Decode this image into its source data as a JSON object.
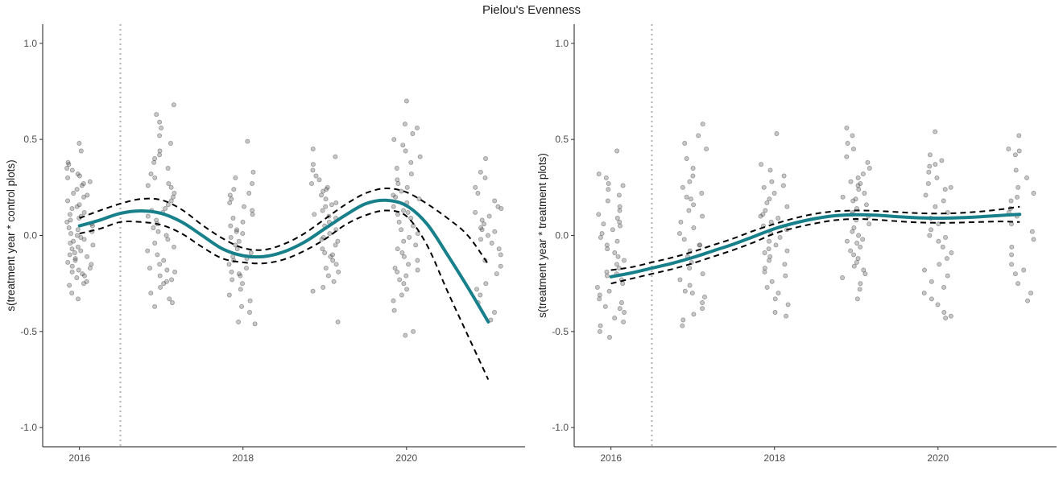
{
  "figure": {
    "title": "Pielou's Evenness",
    "colors": {
      "smooth": "#17808a",
      "ci": "#000000",
      "points": "#4d4d4d",
      "vline": "#b3b3b3"
    }
  },
  "chart_data": [
    {
      "type": "scatter",
      "panel": "left",
      "title": "",
      "xlabel": "",
      "ylabel": "s(treatment year * control plots)",
      "xlim": [
        2015.55,
        2021.45
      ],
      "ylim": [
        -1.1,
        1.1
      ],
      "x_ticks": [
        2016,
        2018,
        2020
      ],
      "x_tick_labels": [
        "2016",
        "2018",
        "2020"
      ],
      "y_ticks": [
        -1.0,
        -0.5,
        0.0,
        0.5,
        1.0
      ],
      "y_tick_labels": [
        "-1.0",
        "-0.5",
        "0.0",
        "0.5",
        "1.0"
      ],
      "vline_x": 2016.5,
      "grid": false,
      "point_groups": [
        {
          "x": 2016,
          "spread": 0.17,
          "values": [
            0.48,
            0.44,
            0.37,
            0.34,
            0.32,
            0.31,
            0.3,
            0.28,
            0.26,
            0.24,
            0.22,
            0.21,
            0.2,
            0.18,
            0.16,
            0.14,
            0.12,
            0.11,
            0.1,
            0.09,
            0.08,
            0.07,
            0.06,
            0.05,
            0.04,
            0.03,
            0.02,
            0.01,
            0.0,
            -0.01,
            -0.02,
            -0.03,
            -0.04,
            -0.05,
            -0.06,
            -0.07,
            -0.08,
            -0.09,
            -0.1,
            -0.11,
            -0.12,
            -0.13,
            -0.14,
            -0.15,
            -0.16,
            -0.17,
            -0.18,
            -0.19,
            -0.2,
            -0.22,
            -0.24,
            -0.25,
            -0.26,
            -0.3,
            -0.33,
            0.38,
            0.35,
            0.15,
            -0.21,
            0.27
          ]
        },
        {
          "x": 2017,
          "spread": 0.17,
          "values": [
            0.68,
            0.63,
            0.59,
            0.56,
            0.52,
            0.48,
            0.44,
            0.42,
            0.4,
            0.38,
            0.35,
            0.32,
            0.3,
            0.27,
            0.25,
            0.22,
            0.2,
            0.18,
            0.16,
            0.14,
            0.12,
            0.1,
            0.08,
            0.06,
            0.04,
            0.02,
            0.0,
            -0.02,
            -0.04,
            -0.06,
            -0.08,
            -0.1,
            -0.13,
            -0.15,
            -0.17,
            -0.19,
            -0.21,
            -0.23,
            -0.25,
            -0.27,
            -0.3,
            -0.33,
            -0.35,
            -0.37,
            0.26,
            0.13,
            -0.18,
            -0.24
          ]
        },
        {
          "x": 2018,
          "spread": 0.17,
          "values": [
            0.49,
            0.33,
            0.3,
            0.27,
            0.24,
            0.21,
            0.19,
            0.17,
            0.15,
            0.13,
            0.11,
            0.09,
            0.07,
            0.05,
            0.03,
            0.01,
            -0.01,
            -0.03,
            -0.05,
            -0.07,
            -0.09,
            -0.11,
            -0.13,
            -0.15,
            -0.17,
            -0.19,
            -0.21,
            -0.23,
            -0.25,
            -0.28,
            -0.31,
            -0.34,
            -0.37,
            -0.4,
            -0.45,
            -0.46,
            0.22,
            -0.12,
            0.02,
            -0.2
          ]
        },
        {
          "x": 2019,
          "spread": 0.17,
          "values": [
            0.45,
            0.41,
            0.37,
            0.34,
            0.31,
            0.29,
            0.27,
            0.25,
            0.23,
            0.21,
            0.19,
            0.17,
            0.15,
            0.13,
            0.11,
            0.09,
            0.07,
            0.05,
            0.03,
            0.01,
            -0.01,
            -0.03,
            -0.05,
            -0.07,
            -0.09,
            -0.11,
            -0.13,
            -0.15,
            -0.17,
            -0.19,
            -0.21,
            -0.24,
            -0.27,
            -0.29,
            -0.45,
            0.24,
            0.1,
            -0.02,
            0.16,
            -0.1
          ]
        },
        {
          "x": 2020,
          "spread": 0.17,
          "values": [
            0.7,
            0.58,
            0.56,
            0.53,
            0.5,
            0.47,
            0.44,
            0.41,
            0.38,
            0.35,
            0.32,
            0.29,
            0.27,
            0.25,
            0.23,
            0.21,
            0.19,
            0.17,
            0.15,
            0.13,
            0.11,
            0.09,
            0.07,
            0.05,
            0.03,
            0.01,
            -0.01,
            -0.03,
            -0.05,
            -0.07,
            -0.09,
            -0.11,
            -0.13,
            -0.15,
            -0.17,
            -0.19,
            -0.21,
            -0.23,
            -0.25,
            -0.28,
            -0.31,
            -0.34,
            -0.39,
            -0.5,
            -0.52,
            0.12,
            -0.18,
            0.2
          ]
        },
        {
          "x": 2021,
          "spread": 0.17,
          "values": [
            0.4,
            0.33,
            0.3,
            0.25,
            0.22,
            0.18,
            0.15,
            0.12,
            0.1,
            0.08,
            0.06,
            0.04,
            0.02,
            0.0,
            -0.02,
            -0.04,
            -0.07,
            -0.1,
            -0.13,
            -0.16,
            -0.2,
            -0.25,
            -0.28,
            -0.31,
            -0.35,
            -0.4,
            -0.44,
            0.14,
            0.03
          ]
        }
      ],
      "smooth": {
        "x": [
          2016.0,
          2016.25,
          2016.5,
          2016.75,
          2017.0,
          2017.25,
          2017.5,
          2017.75,
          2018.0,
          2018.25,
          2018.5,
          2018.75,
          2019.0,
          2019.25,
          2019.5,
          2019.75,
          2020.0,
          2020.25,
          2020.5,
          2020.75,
          2021.0
        ],
        "fit": [
          0.05,
          0.08,
          0.115,
          0.128,
          0.115,
          0.07,
          0.0,
          -0.07,
          -0.105,
          -0.11,
          -0.085,
          -0.035,
          0.035,
          0.105,
          0.165,
          0.183,
          0.155,
          0.06,
          -0.1,
          -0.27,
          -0.45
        ],
        "upper": [
          0.09,
          0.13,
          0.165,
          0.19,
          0.185,
          0.135,
          0.055,
          -0.015,
          -0.065,
          -0.075,
          -0.045,
          0.01,
          0.085,
          0.16,
          0.22,
          0.245,
          0.225,
          0.165,
          0.09,
          0.0,
          -0.15
        ],
        "lower": [
          0.01,
          0.035,
          0.07,
          0.07,
          0.055,
          0.01,
          -0.06,
          -0.12,
          -0.14,
          -0.145,
          -0.125,
          -0.08,
          -0.02,
          0.055,
          0.105,
          0.13,
          0.1,
          -0.05,
          -0.29,
          -0.52,
          -0.75
        ]
      }
    },
    {
      "type": "scatter",
      "panel": "right",
      "title": "",
      "xlabel": "",
      "ylabel": "s(treatment year * treatment plots)",
      "xlim": [
        2015.55,
        2021.45
      ],
      "ylim": [
        -1.1,
        1.1
      ],
      "x_ticks": [
        2016,
        2018,
        2020
      ],
      "x_tick_labels": [
        "2016",
        "2018",
        "2020"
      ],
      "y_ticks": [
        -1.0,
        -0.5,
        0.0,
        0.5,
        1.0
      ],
      "y_tick_labels": [
        "-1.0",
        "-0.5",
        "0.0",
        "0.5",
        "1.0"
      ],
      "vline_x": 2016.5,
      "grid": false,
      "point_groups": [
        {
          "x": 2016,
          "spread": 0.17,
          "values": [
            0.44,
            0.32,
            0.3,
            0.27,
            0.24,
            0.21,
            0.18,
            0.15,
            0.13,
            0.11,
            0.09,
            0.07,
            0.05,
            0.03,
            0.01,
            -0.01,
            -0.03,
            -0.05,
            -0.07,
            -0.09,
            -0.11,
            -0.13,
            -0.15,
            -0.17,
            -0.19,
            -0.21,
            -0.23,
            -0.25,
            -0.27,
            -0.29,
            -0.31,
            -0.33,
            -0.35,
            -0.37,
            -0.4,
            -0.43,
            -0.45,
            -0.47,
            -0.5,
            -0.53,
            0.26,
            -0.2,
            0.06,
            -0.38
          ]
        },
        {
          "x": 2017,
          "spread": 0.17,
          "values": [
            0.58,
            0.52,
            0.48,
            0.45,
            0.4,
            0.35,
            0.31,
            0.28,
            0.25,
            0.22,
            0.19,
            0.16,
            0.13,
            0.1,
            0.07,
            0.04,
            0.01,
            -0.02,
            -0.05,
            -0.08,
            -0.11,
            -0.14,
            -0.17,
            -0.2,
            -0.23,
            -0.26,
            -0.29,
            -0.32,
            -0.35,
            -0.38,
            -0.41,
            -0.44,
            -0.47,
            0.2,
            -0.05,
            -0.3
          ]
        },
        {
          "x": 2018,
          "spread": 0.17,
          "values": [
            0.53,
            0.37,
            0.34,
            0.31,
            0.28,
            0.25,
            0.22,
            0.19,
            0.17,
            0.15,
            0.13,
            0.11,
            0.09,
            0.07,
            0.05,
            0.03,
            0.01,
            -0.01,
            -0.03,
            -0.05,
            -0.07,
            -0.09,
            -0.11,
            -0.13,
            -0.15,
            -0.17,
            -0.19,
            -0.21,
            -0.24,
            -0.27,
            -0.3,
            -0.33,
            -0.36,
            -0.4,
            -0.42,
            0.26,
            -0.08,
            0.1
          ]
        },
        {
          "x": 2019,
          "spread": 0.17,
          "values": [
            0.56,
            0.52,
            0.48,
            0.45,
            0.41,
            0.38,
            0.35,
            0.32,
            0.3,
            0.28,
            0.26,
            0.24,
            0.22,
            0.2,
            0.18,
            0.16,
            0.14,
            0.12,
            0.1,
            0.08,
            0.06,
            0.04,
            0.02,
            0.0,
            -0.02,
            -0.04,
            -0.06,
            -0.08,
            -0.1,
            -0.12,
            -0.14,
            -0.16,
            -0.18,
            -0.2,
            -0.22,
            -0.25,
            -0.28,
            -0.33,
            0.27,
            0.11,
            0.19,
            -0.03
          ]
        },
        {
          "x": 2020,
          "spread": 0.17,
          "values": [
            0.54,
            0.42,
            0.39,
            0.36,
            0.33,
            0.3,
            0.27,
            0.24,
            0.21,
            0.18,
            0.15,
            0.12,
            0.09,
            0.06,
            0.03,
            0.0,
            -0.03,
            -0.06,
            -0.09,
            -0.12,
            -0.15,
            -0.18,
            -0.21,
            -0.24,
            -0.27,
            -0.3,
            -0.33,
            -0.36,
            -0.4,
            -0.42,
            -0.43,
            0.37,
            -0.01,
            0.25
          ]
        },
        {
          "x": 2021,
          "spread": 0.17,
          "values": [
            0.52,
            0.45,
            0.44,
            0.42,
            0.34,
            0.3,
            0.25,
            0.22,
            0.18,
            0.14,
            0.1,
            0.06,
            0.02,
            -0.02,
            -0.06,
            -0.1,
            -0.15,
            -0.18,
            -0.2,
            -0.25,
            -0.3,
            -0.34,
            0.12,
            0.2
          ]
        }
      ],
      "smooth": {
        "x": [
          2016.0,
          2016.25,
          2016.5,
          2016.75,
          2017.0,
          2017.25,
          2017.5,
          2017.75,
          2018.0,
          2018.25,
          2018.5,
          2018.75,
          2019.0,
          2019.25,
          2019.5,
          2019.75,
          2020.0,
          2020.25,
          2020.5,
          2020.75,
          2021.0
        ],
        "fit": [
          -0.215,
          -0.195,
          -0.17,
          -0.145,
          -0.115,
          -0.08,
          -0.045,
          -0.005,
          0.035,
          0.065,
          0.088,
          0.103,
          0.108,
          0.105,
          0.098,
          0.092,
          0.09,
          0.092,
          0.097,
          0.104,
          0.11
        ],
        "upper": [
          -0.18,
          -0.165,
          -0.14,
          -0.115,
          -0.085,
          -0.05,
          -0.015,
          0.025,
          0.06,
          0.09,
          0.113,
          0.126,
          0.13,
          0.128,
          0.122,
          0.116,
          0.114,
          0.117,
          0.124,
          0.135,
          0.15
        ],
        "lower": [
          -0.25,
          -0.225,
          -0.2,
          -0.175,
          -0.145,
          -0.11,
          -0.075,
          -0.035,
          0.01,
          0.04,
          0.063,
          0.08,
          0.086,
          0.082,
          0.074,
          0.068,
          0.066,
          0.067,
          0.07,
          0.073,
          0.07
        ]
      }
    }
  ]
}
